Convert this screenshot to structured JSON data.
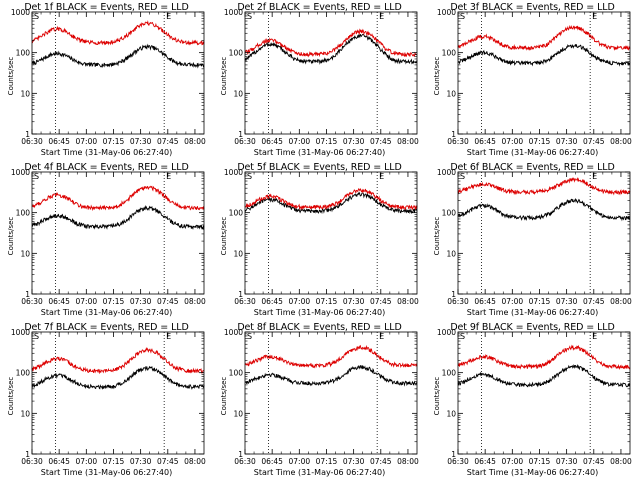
{
  "colors": {
    "events": "#000000",
    "lld": "#dd0000",
    "axes": "#000000",
    "background": "#ffffff"
  },
  "markers": {
    "start": "S",
    "end": "E"
  },
  "chart_data": [
    {
      "type": "line",
      "title": "Det 1f BLACK = Events, RED = LLD",
      "xlabel": "Start Time (31-May-06 06:27:40)",
      "ylabel": "Counts/sec",
      "ylog": true,
      "ylim": [
        1,
        1000
      ],
      "yticks": [
        "1",
        "10",
        "100",
        "1000"
      ],
      "xticks": [
        "06:30",
        "06:45",
        "07:00",
        "07:15",
        "07:30",
        "07:45",
        "08:00"
      ],
      "time_range": [
        "06:30",
        "08:05"
      ],
      "dotted_lines_at": [
        "06:43",
        "07:43"
      ],
      "series": [
        {
          "name": "Events",
          "color": "#000000",
          "baseline": 50,
          "peak1": 95,
          "peak2": 140
        },
        {
          "name": "LLD",
          "color": "#dd0000",
          "baseline": 175,
          "peak1": 380,
          "peak2": 520
        }
      ]
    },
    {
      "type": "line",
      "title": "Det 2f BLACK = Events, RED = LLD",
      "xlabel": "Start Time (31-May-06 06:27:40)",
      "ylabel": "Counts/sec",
      "ylog": true,
      "ylim": [
        1,
        1000
      ],
      "yticks": [
        "1",
        "10",
        "100",
        "1000"
      ],
      "xticks": [
        "06:30",
        "06:45",
        "07:00",
        "07:15",
        "07:30",
        "07:45",
        "08:00"
      ],
      "time_range": [
        "06:30",
        "08:05"
      ],
      "dotted_lines_at": [
        "06:43",
        "07:43"
      ],
      "series": [
        {
          "name": "Events",
          "color": "#000000",
          "baseline": 60,
          "peak1": 160,
          "peak2": 260
        },
        {
          "name": "LLD",
          "color": "#dd0000",
          "baseline": 90,
          "peak1": 200,
          "peak2": 330
        }
      ]
    },
    {
      "type": "line",
      "title": "Det 3f BLACK = Events, RED = LLD",
      "xlabel": "Start Time (31-May-06 06:27:40)",
      "ylabel": "Counts/sec",
      "ylog": true,
      "ylim": [
        1,
        1000
      ],
      "yticks": [
        "1",
        "10",
        "100",
        "1000"
      ],
      "xticks": [
        "06:30",
        "06:45",
        "07:00",
        "07:15",
        "07:30",
        "07:45",
        "08:00"
      ],
      "time_range": [
        "06:30",
        "08:05"
      ],
      "dotted_lines_at": [
        "06:43",
        "07:43"
      ],
      "series": [
        {
          "name": "Events",
          "color": "#000000",
          "baseline": 55,
          "peak1": 100,
          "peak2": 150
        },
        {
          "name": "LLD",
          "color": "#dd0000",
          "baseline": 130,
          "peak1": 250,
          "peak2": 420
        }
      ]
    },
    {
      "type": "line",
      "title": "Det 4f BLACK = Events, RED = LLD",
      "xlabel": "Start Time (31-May-06 06:27:40)",
      "ylabel": "Counts/sec",
      "ylog": true,
      "ylim": [
        1,
        1000
      ],
      "yticks": [
        "1",
        "10",
        "100",
        "1000"
      ],
      "xticks": [
        "06:30",
        "06:45",
        "07:00",
        "07:15",
        "07:30",
        "07:45",
        "08:00"
      ],
      "time_range": [
        "06:30",
        "08:05"
      ],
      "dotted_lines_at": [
        "06:43",
        "07:43"
      ],
      "series": [
        {
          "name": "Events",
          "color": "#000000",
          "baseline": 45,
          "peak1": 85,
          "peak2": 130
        },
        {
          "name": "LLD",
          "color": "#dd0000",
          "baseline": 130,
          "peak1": 270,
          "peak2": 420
        }
      ]
    },
    {
      "type": "line",
      "title": "Det 5f BLACK = Events, RED = LLD",
      "xlabel": "Start Time (31-May-06 06:27:40)",
      "ylabel": "Counts/sec",
      "ylog": true,
      "ylim": [
        1,
        1000
      ],
      "yticks": [
        "1",
        "10",
        "100",
        "1000"
      ],
      "xticks": [
        "06:30",
        "06:45",
        "07:00",
        "07:15",
        "07:30",
        "07:45",
        "08:00"
      ],
      "time_range": [
        "06:30",
        "08:05"
      ],
      "dotted_lines_at": [
        "06:43",
        "07:43"
      ],
      "series": [
        {
          "name": "Events",
          "color": "#000000",
          "baseline": 110,
          "peak1": 210,
          "peak2": 280
        },
        {
          "name": "LLD",
          "color": "#dd0000",
          "baseline": 135,
          "peak1": 250,
          "peak2": 360
        }
      ]
    },
    {
      "type": "line",
      "title": "Det 6f BLACK = Events, RED = LLD",
      "xlabel": "Start Time (31-May-06 06:27:40)",
      "ylabel": "Counts/sec",
      "ylog": true,
      "ylim": [
        1,
        1000
      ],
      "yticks": [
        "1",
        "10",
        "100",
        "1000"
      ],
      "xticks": [
        "06:30",
        "06:45",
        "07:00",
        "07:15",
        "07:30",
        "07:45",
        "08:00"
      ],
      "time_range": [
        "06:30",
        "08:05"
      ],
      "dotted_lines_at": [
        "06:43",
        "07:43"
      ],
      "series": [
        {
          "name": "Events",
          "color": "#000000",
          "baseline": 75,
          "peak1": 150,
          "peak2": 200
        },
        {
          "name": "LLD",
          "color": "#dd0000",
          "baseline": 320,
          "peak1": 500,
          "peak2": 650
        }
      ]
    },
    {
      "type": "line",
      "title": "Det 7f BLACK = Events, RED = LLD",
      "xlabel": "Start Time (31-May-06 06:27:40)",
      "ylabel": "Counts/sec",
      "ylog": true,
      "ylim": [
        1,
        1000
      ],
      "yticks": [
        "1",
        "10",
        "100",
        "1000"
      ],
      "xticks": [
        "06:30",
        "06:45",
        "07:00",
        "07:15",
        "07:30",
        "07:45",
        "08:00"
      ],
      "time_range": [
        "06:30",
        "08:05"
      ],
      "dotted_lines_at": [
        "06:43",
        "07:43"
      ],
      "series": [
        {
          "name": "Events",
          "color": "#000000",
          "baseline": 45,
          "peak1": 85,
          "peak2": 130
        },
        {
          "name": "LLD",
          "color": "#dd0000",
          "baseline": 110,
          "peak1": 220,
          "peak2": 360
        }
      ]
    },
    {
      "type": "line",
      "title": "Det 8f BLACK = Events, RED = LLD",
      "xlabel": "Start Time (31-May-06 06:27:40)",
      "ylabel": "Counts/sec",
      "ylog": true,
      "ylim": [
        1,
        1000
      ],
      "yticks": [
        "1",
        "10",
        "100",
        "1000"
      ],
      "xticks": [
        "06:30",
        "06:45",
        "07:00",
        "07:15",
        "07:30",
        "07:45",
        "08:00"
      ],
      "time_range": [
        "06:30",
        "08:05"
      ],
      "dotted_lines_at": [
        "06:43",
        "07:43"
      ],
      "series": [
        {
          "name": "Events",
          "color": "#000000",
          "baseline": 55,
          "peak1": 90,
          "peak2": 140
        },
        {
          "name": "LLD",
          "color": "#dd0000",
          "baseline": 150,
          "peak1": 250,
          "peak2": 420
        }
      ]
    },
    {
      "type": "line",
      "title": "Det 9f BLACK = Events, RED = LLD",
      "xlabel": "Start Time (31-May-06 06:27:40)",
      "ylabel": "Counts/sec",
      "ylog": true,
      "ylim": [
        1,
        1000
      ],
      "yticks": [
        "1",
        "10",
        "100",
        "1000"
      ],
      "xticks": [
        "06:30",
        "06:45",
        "07:00",
        "07:15",
        "07:30",
        "07:45",
        "08:00"
      ],
      "time_range": [
        "06:30",
        "08:05"
      ],
      "dotted_lines_at": [
        "06:43",
        "07:43"
      ],
      "series": [
        {
          "name": "Events",
          "color": "#000000",
          "baseline": 50,
          "peak1": 90,
          "peak2": 140
        },
        {
          "name": "LLD",
          "color": "#dd0000",
          "baseline": 140,
          "peak1": 250,
          "peak2": 420
        }
      ]
    }
  ]
}
